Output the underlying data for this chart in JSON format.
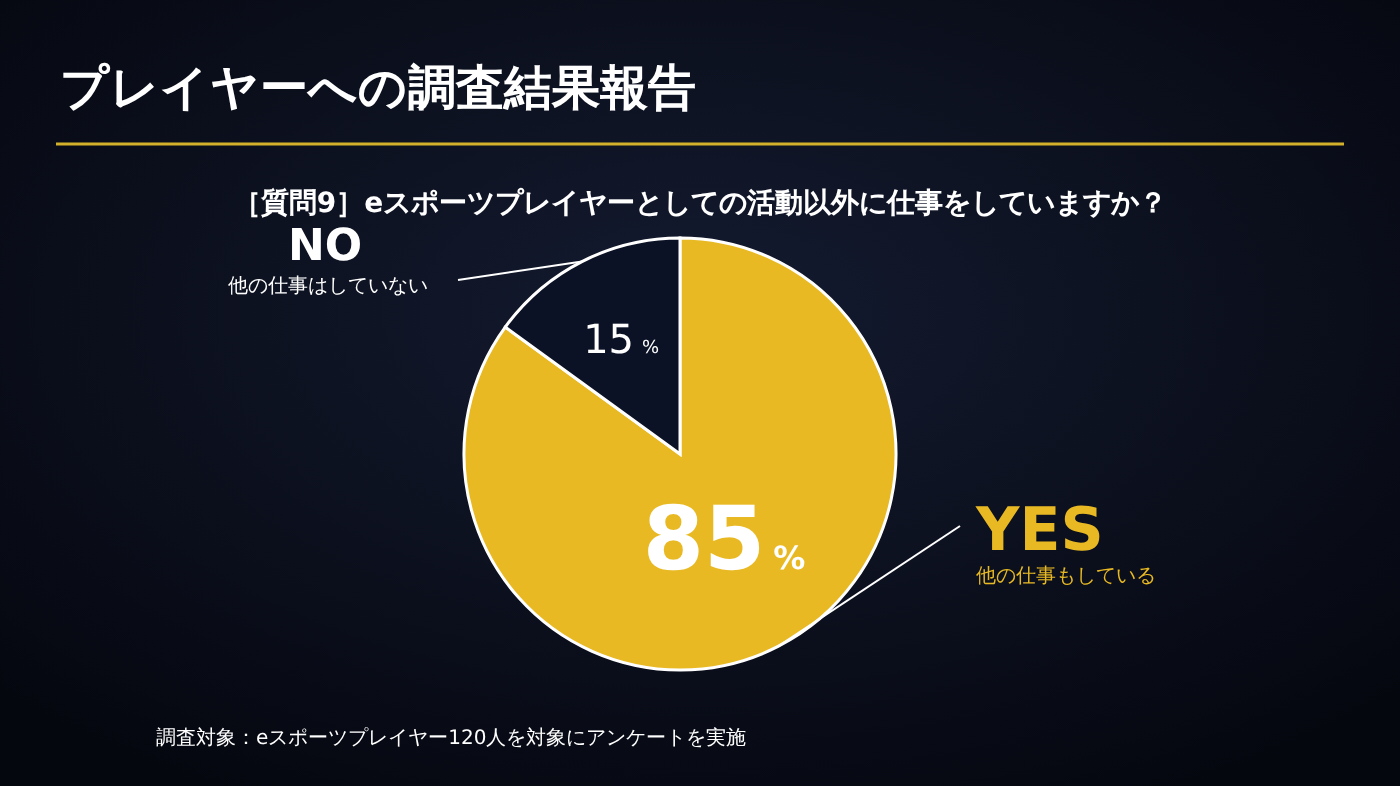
{
  "chart_data": {
    "type": "pie",
    "title": "プレイヤーへの調査結果報告",
    "subtitle": "［質問9］eスポーツプレイヤーとしての活動以外に仕事をしていますか？",
    "categories": [
      "YES",
      "NO"
    ],
    "values": [
      85,
      15
    ],
    "colors": [
      "#e8b923",
      "#0c1226"
    ],
    "value_labels": [
      "85%",
      "15%"
    ],
    "annotations": [
      "他の仕事もしている",
      "他の仕事はしていない",
      "調査対象：eスポーツプレイヤー120人を対象にアンケートを実施"
    ]
  }
}
